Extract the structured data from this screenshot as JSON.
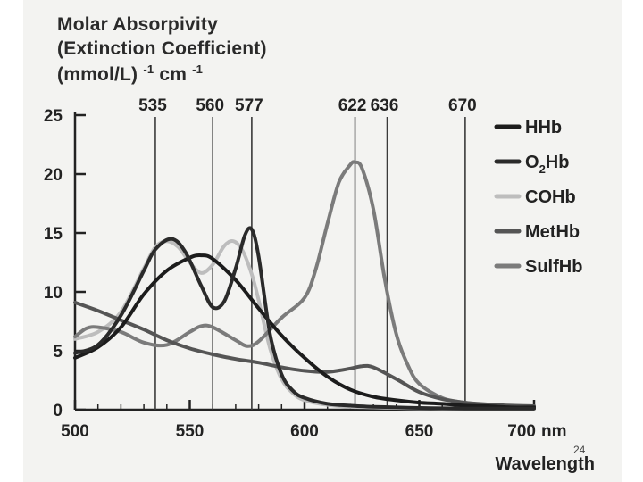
{
  "slide_number": "24",
  "chart_data": {
    "type": "line",
    "ylabel_lines": [
      "Molar Absorpivity",
      "(Extinction Coefficient)"
    ],
    "ylabel_unit": {
      "base1": "(mmol/L)",
      "sup1": "-1",
      "base2": "cm",
      "sup2": "-1"
    },
    "xlabel": "Wavelength",
    "x_unit": "nm",
    "xlim": [
      500,
      700
    ],
    "ylim": [
      0,
      25
    ],
    "x_ticks": [
      "500",
      "550",
      "600",
      "650",
      "700"
    ],
    "y_ticks": [
      "0",
      "5",
      "10",
      "15",
      "20",
      "25"
    ],
    "reference_lines": [
      "535",
      "560",
      "577",
      "622",
      "636",
      "670"
    ],
    "legend_position": "right",
    "series": [
      {
        "name": "HHb",
        "legend_base": "HHb",
        "color": "#1c1c1c",
        "x": [
          500,
          510,
          520,
          530,
          540,
          550,
          555,
          560,
          570,
          580,
          590,
          600,
          610,
          620,
          630,
          640,
          650,
          660,
          670,
          680,
          690,
          700
        ],
        "y": [
          4.4,
          5.3,
          7.0,
          9.8,
          11.8,
          12.9,
          13.1,
          12.8,
          11.0,
          8.6,
          6.3,
          4.4,
          2.8,
          1.7,
          1.1,
          0.8,
          0.6,
          0.5,
          0.35,
          0.3,
          0.2,
          0.2
        ]
      },
      {
        "name": "O2Hb",
        "legend_base": "O",
        "legend_sub": "2",
        "legend_suffix": "Hb",
        "color": "#2a2a2a",
        "x": [
          500,
          510,
          520,
          530,
          535,
          542,
          548,
          555,
          560,
          565,
          570,
          574,
          577,
          580,
          585,
          590,
          595,
          600,
          610,
          620,
          630,
          640,
          650,
          660,
          670,
          680,
          690,
          700
        ],
        "y": [
          4.8,
          5.5,
          8.0,
          11.8,
          13.6,
          14.5,
          13.4,
          10.5,
          8.7,
          9.2,
          12.0,
          14.8,
          15.3,
          13.0,
          6.4,
          3.0,
          1.6,
          1.0,
          0.5,
          0.35,
          0.25,
          0.2,
          0.15,
          0.12,
          0.1,
          0.1,
          0.1,
          0.1
        ]
      },
      {
        "name": "COHb",
        "legend_base": "COHb",
        "color": "#bdbdbd",
        "x": [
          500,
          510,
          520,
          530,
          535,
          540,
          545,
          550,
          555,
          560,
          565,
          569,
          573,
          577,
          580,
          585,
          590,
          595,
          600,
          610,
          620,
          630,
          640,
          650,
          660,
          670,
          680,
          690,
          700
        ],
        "y": [
          6.0,
          6.6,
          8.3,
          12.0,
          13.8,
          14.3,
          13.8,
          12.5,
          11.6,
          12.3,
          13.9,
          14.3,
          13.5,
          11.5,
          9.3,
          5.2,
          2.6,
          1.4,
          0.8,
          0.4,
          0.25,
          0.2,
          0.15,
          0.12,
          0.1,
          0.1,
          0.1,
          0.1,
          0.1
        ]
      },
      {
        "name": "MetHb",
        "legend_base": "MetHb",
        "color": "#555555",
        "x": [
          500,
          510,
          520,
          530,
          540,
          550,
          560,
          570,
          580,
          590,
          600,
          610,
          620,
          625,
          630,
          640,
          650,
          660,
          670,
          680,
          690,
          700
        ],
        "y": [
          9.1,
          8.4,
          7.6,
          6.8,
          5.9,
          5.2,
          4.7,
          4.3,
          4.0,
          3.6,
          3.3,
          3.2,
          3.5,
          3.7,
          3.6,
          2.6,
          1.5,
          0.9,
          0.6,
          0.45,
          0.35,
          0.3
        ]
      },
      {
        "name": "SulfHb",
        "legend_base": "SulfHb",
        "color": "#7b7b7b",
        "x": [
          500,
          505,
          510,
          520,
          530,
          540,
          550,
          555,
          560,
          570,
          575,
          580,
          590,
          600,
          605,
          610,
          615,
          620,
          622,
          625,
          630,
          635,
          640,
          645,
          650,
          660,
          670,
          680,
          690,
          700
        ],
        "y": [
          6.2,
          6.9,
          7.0,
          6.6,
          5.7,
          5.5,
          6.6,
          7.1,
          7.0,
          5.9,
          5.4,
          5.8,
          7.8,
          9.5,
          12.0,
          15.8,
          19.3,
          20.8,
          21.0,
          20.5,
          17.0,
          11.0,
          6.4,
          3.8,
          2.2,
          1.0,
          0.6,
          0.4,
          0.3,
          0.3
        ]
      }
    ]
  }
}
